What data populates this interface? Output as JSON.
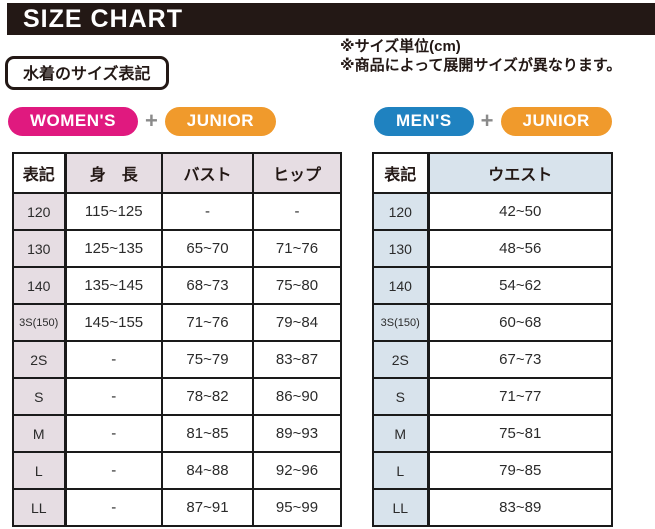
{
  "page": {
    "title": "SIZE CHART"
  },
  "notes": [
    "※サイズ単位(cm)",
    "※商品によって展開サイズが異なります。"
  ],
  "section_label": "水着のサイズ表記",
  "groups": {
    "left": {
      "badge1": "WOMEN'S",
      "plus": "+",
      "badge2": "JUNIOR"
    },
    "right": {
      "badge1": "MEN'S",
      "plus": "+",
      "badge2": "JUNIOR"
    }
  },
  "colors": {
    "banner_black": "#231815",
    "womens_pink": "#E0197F",
    "mens_blue": "#1F82C0",
    "junior_orange": "#F09A2C",
    "plus_gray": "#8A8A8A",
    "women_table_header_bg": "#E6DDE3",
    "men_table_header_bg": "#D8E3EC",
    "table_border": "#1a1a1a"
  },
  "chart_data": [
    {
      "type": "table",
      "title": "WOMEN'S + JUNIOR",
      "headers": [
        "表記",
        "身　長",
        "バスト",
        "ヒップ"
      ],
      "rows": [
        [
          "120",
          "115~125",
          "-",
          "-"
        ],
        [
          "130",
          "125~135",
          "65~70",
          "71~76"
        ],
        [
          "140",
          "135~145",
          "68~73",
          "75~80"
        ],
        [
          "3S(150)",
          "145~155",
          "71~76",
          "79~84"
        ],
        [
          "2S",
          "-",
          "75~79",
          "83~87"
        ],
        [
          "S",
          "-",
          "78~82",
          "86~90"
        ],
        [
          "M",
          "-",
          "81~85",
          "89~93"
        ],
        [
          "L",
          "-",
          "84~88",
          "92~96"
        ],
        [
          "LL",
          "-",
          "87~91",
          "95~99"
        ]
      ]
    },
    {
      "type": "table",
      "title": "MEN'S + JUNIOR",
      "headers": [
        "表記",
        "ウエスト"
      ],
      "rows": [
        [
          "120",
          "42~50"
        ],
        [
          "130",
          "48~56"
        ],
        [
          "140",
          "54~62"
        ],
        [
          "3S(150)",
          "60~68"
        ],
        [
          "2S",
          "67~73"
        ],
        [
          "S",
          "71~77"
        ],
        [
          "M",
          "75~81"
        ],
        [
          "L",
          "79~85"
        ],
        [
          "LL",
          "83~89"
        ]
      ]
    }
  ]
}
